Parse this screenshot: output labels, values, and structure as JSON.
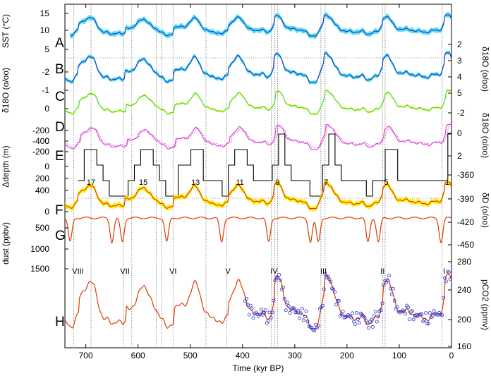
{
  "chart_data": {
    "type": "line",
    "x_axis": {
      "label": "Time (kyr BP)",
      "range": [
        740,
        0
      ],
      "ticks": [
        "700",
        "600",
        "500",
        "400",
        "300",
        "200",
        "100",
        "0"
      ],
      "tick_values": [
        700,
        600,
        500,
        400,
        300,
        200,
        100,
        0
      ]
    },
    "panels": [
      {
        "letter": "A",
        "left_label": "SST (°C)",
        "left_ticks": [
          "15",
          "10",
          "5"
        ],
        "right_label": "",
        "right_ticks": [],
        "color": "#1a3ec4",
        "fill": "#33d6f0"
      },
      {
        "letter": "B",
        "left_label": "",
        "left_ticks": [],
        "right_label": "δ18O (o/oo)",
        "right_ticks": [
          "2",
          "3",
          "4",
          "5"
        ],
        "color": "#1a3ec4",
        "fill": "#33d6f0"
      },
      {
        "letter": "C",
        "left_label": "δ18O (o/oo)",
        "left_ticks": [
          "-2",
          "-1",
          "0"
        ],
        "right_label": "",
        "right_ticks": [],
        "color": "#44dd22",
        "fill": "#f0ee20"
      },
      {
        "letter": "D",
        "left_label": "",
        "left_ticks": [
          "-200",
          "0"
        ],
        "right_label": "δ18O (o/oo)",
        "right_ticks": [
          "-2",
          "0",
          "2"
        ],
        "color": "#e83ee0",
        "dotted_color": "#b05bb0"
      },
      {
        "letter": "E",
        "left_label": "Δdepth (m)",
        "left_ticks": [
          "-400",
          "-200",
          "0",
          "200",
          "400"
        ],
        "right_label": "",
        "right_ticks": [],
        "color": "#000000"
      },
      {
        "letter": "F",
        "left_label": "",
        "left_ticks": [
          "0"
        ],
        "right_label": "δD (o/oo)",
        "right_ticks": [
          "-360",
          "-390",
          "-420",
          "-450"
        ],
        "color": "#e03a00",
        "fill": "#ffee00"
      },
      {
        "letter": "G",
        "left_label": "dust (ppbv)",
        "left_ticks": [
          "500",
          "1000",
          "1500"
        ],
        "right_label": "",
        "right_ticks": [],
        "color": "#e03a00"
      },
      {
        "letter": "H",
        "left_label": "",
        "left_ticks": [],
        "right_label": "pCO2 (ppmv)",
        "right_ticks": [
          "280",
          "240",
          "200",
          "160"
        ],
        "color": "#e03a00",
        "points_color": "#2430d8"
      }
    ],
    "marine_isotope_stages": [
      {
        "label": "17",
        "x": 690
      },
      {
        "label": "15",
        "x": 590
      },
      {
        "label": "13",
        "x": 490
      },
      {
        "label": "11",
        "x": 405
      },
      {
        "label": "9",
        "x": 333
      },
      {
        "label": "7",
        "x": 240
      },
      {
        "label": "5",
        "x": 125
      },
      {
        "label": "1",
        "x": 8
      }
    ],
    "terminations": [
      {
        "label": "VIII",
        "x": 715
      },
      {
        "label": "VII",
        "x": 625
      },
      {
        "label": "VI",
        "x": 533
      },
      {
        "label": "V",
        "x": 428
      },
      {
        "label": "IV",
        "x": 340
      },
      {
        "label": "III",
        "x": 245
      },
      {
        "label": "II",
        "x": 132
      },
      {
        "label": "I",
        "x": 14
      }
    ],
    "vertical_lines": [
      723,
      690,
      628,
      612,
      565,
      555,
      533,
      470,
      430,
      345,
      338,
      333,
      250,
      242,
      132,
      127,
      18
    ],
    "termination_ages": [
      14,
      132,
      245,
      340,
      428,
      533,
      625,
      715
    ],
    "interglacial_ages": [
      8,
      125,
      240,
      333,
      405,
      490,
      590,
      690
    ],
    "glacial_ages": [
      20,
      140,
      160,
      255,
      270,
      350,
      440,
      545,
      630,
      650,
      730
    ],
    "grid": true
  }
}
